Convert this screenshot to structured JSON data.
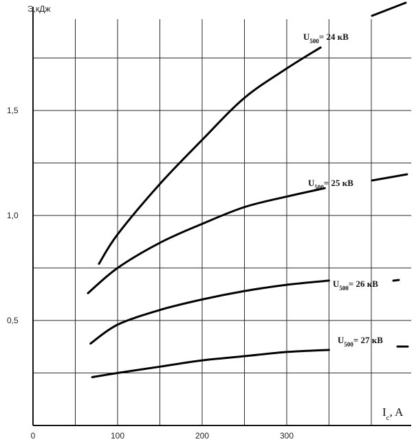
{
  "chart_data": {
    "type": "line",
    "xlabel_main": "I",
    "xlabel_sub": "c",
    "xlabel_unit": ", A",
    "ylabel": "Э,кДж",
    "xlim": [
      0,
      450
    ],
    "ylim": [
      0,
      1.95
    ],
    "grid": true,
    "x_ticks": [
      0,
      100,
      200,
      300
    ],
    "y_ticks": [
      0.5,
      1.0,
      1.5
    ],
    "y_tick_labels": [
      "0,5",
      "1,0",
      "1,5"
    ],
    "series": [
      {
        "name_main": "U",
        "name_sub": "500",
        "name_rest": "= 24 кВ",
        "x": [
          78,
          100,
          150,
          200,
          250,
          300,
          340
        ],
        "y": [
          0.77,
          0.91,
          1.15,
          1.36,
          1.56,
          1.7,
          1.8
        ]
      },
      {
        "name_main": "U",
        "name_sub": "500",
        "name_rest": "= 25 кВ",
        "x": [
          65,
          100,
          150,
          200,
          250,
          300,
          345
        ],
        "y": [
          0.63,
          0.75,
          0.87,
          0.96,
          1.04,
          1.09,
          1.13
        ]
      },
      {
        "name_main": "U",
        "name_sub": "500",
        "name_rest": "= 26 кВ",
        "x": [
          68,
          100,
          150,
          200,
          250,
          300,
          350
        ],
        "y": [
          0.39,
          0.48,
          0.55,
          0.6,
          0.64,
          0.67,
          0.69
        ]
      },
      {
        "name_main": "U",
        "name_sub": "500",
        "name_rest": "= 27 кВ",
        "x": [
          70,
          100,
          150,
          200,
          250,
          300,
          350
        ],
        "y": [
          0.23,
          0.25,
          0.28,
          0.31,
          0.33,
          0.35,
          0.36
        ]
      }
    ]
  }
}
